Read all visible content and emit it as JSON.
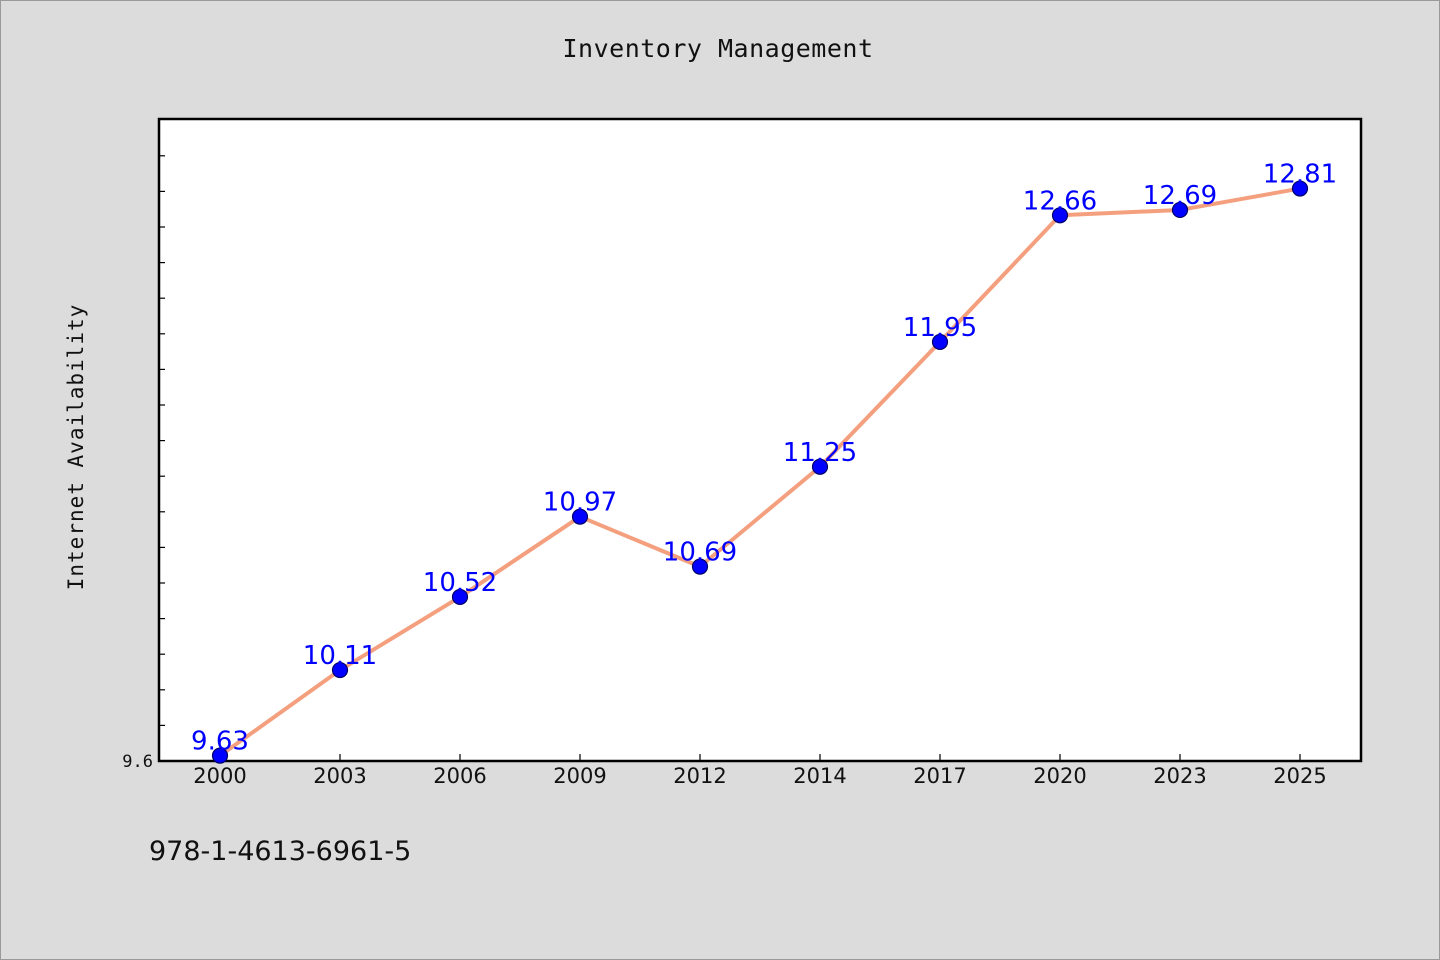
{
  "chart_data": {
    "type": "line",
    "title": "Inventory Management",
    "xlabel": "",
    "ylabel": "Internet Availability",
    "categories": [
      "2000",
      "2003",
      "2006",
      "2009",
      "2012",
      "2014",
      "2017",
      "2020",
      "2023",
      "2025"
    ],
    "series": [
      {
        "values": [
          9.63,
          10.11,
          10.52,
          10.97,
          10.69,
          11.25,
          11.95,
          12.66,
          12.69,
          12.81
        ],
        "data_labels": [
          "9.63",
          "10.11",
          "10.52",
          "10.97",
          "10.69",
          "11.25",
          "11.95",
          "12.66",
          "12.69",
          "12.81"
        ],
        "line_color": "#f4a07f",
        "marker_color": "#0000ff"
      }
    ],
    "y_tick_labels": [
      "9.6"
    ],
    "ylim": [
      9.6,
      13.2
    ],
    "grid": false,
    "legend": "none",
    "colors": {
      "background": "#dcdcdc",
      "plot_area": "#ffffff",
      "line": "#f4a07f",
      "marker": "#0000ff",
      "data_label": "#0000ff"
    }
  },
  "footer": {
    "identifier": "978-1-4613-6961-5"
  }
}
